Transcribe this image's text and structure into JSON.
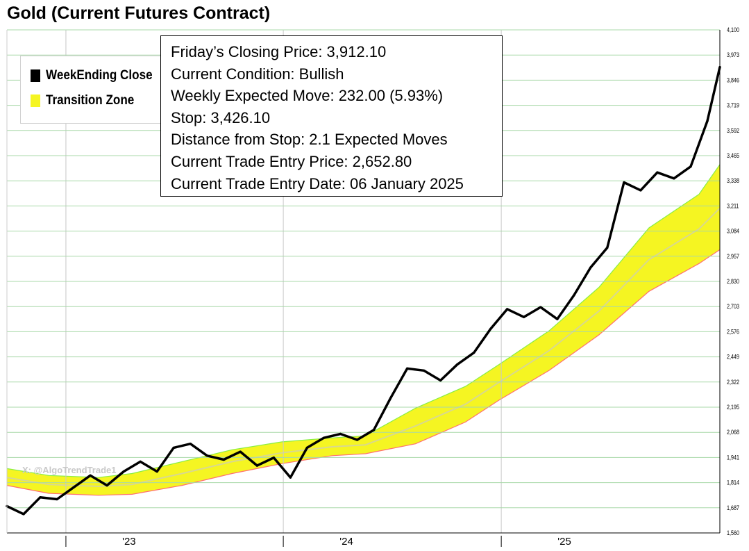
{
  "title": "Gold (Current Futures Contract)",
  "watermark": "X: @AlgoTrendTrade1",
  "legend": {
    "items": [
      {
        "label": "WeekEnding Close",
        "color": "#000000"
      },
      {
        "label": "Transition Zone",
        "color": "#f5f522"
      }
    ]
  },
  "info": {
    "closing_price": "Friday’s Closing Price: 3,912.10",
    "condition": "Current Condition: Bullish",
    "expected_move": "Weekly Expected Move: 232.00 (5.93%)",
    "stop": "Stop: 3,426.10",
    "distance": "Distance from Stop: 2.1 Expected Moves",
    "entry_price": "Current Trade Entry Price: 2,652.80",
    "entry_date": "Current Trade Entry Date: 06 January 2025"
  },
  "colors": {
    "close_line": "#000000",
    "zone_fill": "#f5f522",
    "zone_upper_edge": "#88ee44",
    "zone_lower_edge": "#ff7070",
    "zone_mid": "#d8d890",
    "grid": "#a8d8a8",
    "vgrid": "#c8c8c8"
  },
  "chart_data": {
    "type": "line",
    "title": "Gold (Current Futures Contract)",
    "y_ticks": [
      "1,560",
      "1,687",
      "1,814",
      "1,941",
      "2,068",
      "2,195",
      "2,322",
      "2,449",
      "2,576",
      "2,703",
      "2,830",
      "2,957",
      "3,084",
      "3,211",
      "3,338",
      "3,465",
      "3,592",
      "3,719",
      "3,846",
      "3,973",
      "4,100"
    ],
    "ylim": [
      1560,
      4100
    ],
    "x_ticks": [
      "'23",
      "'24",
      "'25"
    ],
    "xlim": [
      "2022-06-24",
      "2025-10-03"
    ],
    "year_dividers": [
      "2022-10-01",
      "2023-10-01",
      "2024-10-01"
    ],
    "tick_dates": [
      "2023-01-15",
      "2024-01-15",
      "2025-01-15"
    ],
    "series": [
      {
        "name": "WeekEnding Close",
        "dates": [
          "2022-06-24",
          "2022-07-22",
          "2022-08-19",
          "2022-09-16",
          "2022-10-14",
          "2022-11-11",
          "2022-12-09",
          "2023-01-06",
          "2023-02-03",
          "2023-03-03",
          "2023-03-31",
          "2023-04-28",
          "2023-05-26",
          "2023-06-23",
          "2023-07-21",
          "2023-08-18",
          "2023-09-15",
          "2023-10-13",
          "2023-11-10",
          "2023-12-08",
          "2024-01-05",
          "2024-02-02",
          "2024-03-01",
          "2024-03-29",
          "2024-04-26",
          "2024-05-24",
          "2024-06-21",
          "2024-07-19",
          "2024-08-16",
          "2024-09-13",
          "2024-10-11",
          "2024-11-08",
          "2024-12-06",
          "2025-01-03",
          "2025-01-31",
          "2025-02-28",
          "2025-03-28",
          "2025-04-25",
          "2025-05-23",
          "2025-06-20",
          "2025-07-18",
          "2025-08-15",
          "2025-09-12",
          "2025-10-03"
        ],
        "values": [
          1695,
          1655,
          1740,
          1730,
          1790,
          1850,
          1800,
          1870,
          1920,
          1870,
          1990,
          2010,
          1950,
          1930,
          1970,
          1900,
          1940,
          1840,
          1990,
          2040,
          2060,
          2030,
          2080,
          2240,
          2390,
          2380,
          2330,
          2410,
          2470,
          2590,
          2690,
          2650,
          2700,
          2640,
          2760,
          2900,
          3000,
          3330,
          3290,
          3380,
          3350,
          3410,
          3640,
          3912
        ]
      }
    ],
    "zone": {
      "name": "Transition Zone",
      "dates": [
        "2022-06-24",
        "2022-09-02",
        "2022-11-25",
        "2023-01-20",
        "2023-04-14",
        "2023-07-07",
        "2023-09-29",
        "2023-12-22",
        "2024-02-16",
        "2024-05-10",
        "2024-08-02",
        "2024-09-27",
        "2024-12-20",
        "2025-03-14",
        "2025-06-06",
        "2025-08-29",
        "2025-10-03"
      ],
      "upper": [
        1885,
        1850,
        1840,
        1860,
        1920,
        1980,
        2020,
        2040,
        2050,
        2190,
        2300,
        2410,
        2580,
        2800,
        3100,
        3270,
        3420
      ],
      "lower": [
        1800,
        1760,
        1750,
        1755,
        1800,
        1860,
        1910,
        1950,
        1960,
        2010,
        2120,
        2230,
        2380,
        2560,
        2780,
        2920,
        2990
      ],
      "mid": [
        1840,
        1805,
        1795,
        1805,
        1860,
        1920,
        1965,
        1995,
        2005,
        2100,
        2210,
        2320,
        2480,
        2680,
        2940,
        3095,
        3200
      ]
    }
  }
}
